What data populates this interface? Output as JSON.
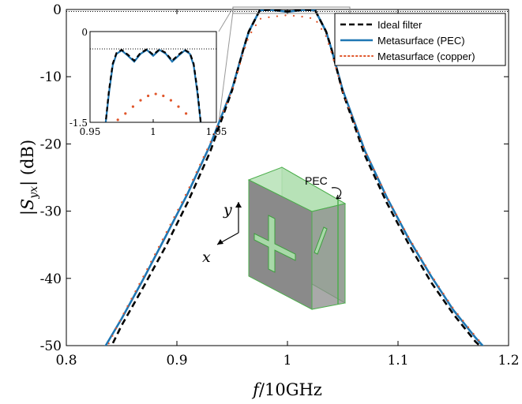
{
  "chart_data": {
    "type": "line",
    "xlabel": "f/10GHz",
    "ylabel": "|Syx| (dB)",
    "xlim": [
      0.8,
      1.2
    ],
    "ylim": [
      -50,
      0
    ],
    "xticks": [
      "0.8",
      "0.9",
      "1",
      "1.1",
      "1.2"
    ],
    "yticks": [
      "0",
      "-10",
      "-20",
      "-30",
      "-40",
      "-50"
    ],
    "grid": false,
    "legend_position": "top-right",
    "series": [
      {
        "name": "Ideal filter",
        "color": "#000000",
        "style": "dashed",
        "x": [
          0.838,
          0.85,
          0.87,
          0.89,
          0.91,
          0.93,
          0.95,
          0.96,
          0.965,
          0.975,
          0.985,
          1.0,
          1.015,
          1.025,
          1.035,
          1.04,
          1.05,
          1.07,
          1.09,
          1.11,
          1.13,
          1.15,
          1.17,
          1.19
        ],
        "y": [
          -51.0,
          -47.0,
          -41.2,
          -35.2,
          -28.6,
          -21.2,
          -12.0,
          -6.0,
          -3.3,
          -0.12,
          -0.02,
          -0.3,
          -0.02,
          -0.12,
          -3.3,
          -6.0,
          -12.3,
          -21.7,
          -28.8,
          -35.0,
          -40.6,
          -45.3,
          -49.4,
          -52.5
        ]
      },
      {
        "name": "Metasurface (PEC)",
        "color": "#1f77b4",
        "style": "solid",
        "x": [
          0.832,
          0.85,
          0.87,
          0.89,
          0.91,
          0.93,
          0.95,
          0.96,
          0.965,
          0.975,
          0.985,
          1.0,
          1.015,
          1.025,
          1.035,
          1.04,
          1.05,
          1.07,
          1.09,
          1.11,
          1.13,
          1.15,
          1.17,
          1.182
        ],
        "y": [
          -51.0,
          -46.0,
          -40.0,
          -33.7,
          -27.3,
          -20.2,
          -11.8,
          -6.0,
          -3.3,
          -0.1,
          -0.05,
          -0.35,
          -0.05,
          -0.1,
          -3.3,
          -6.0,
          -12.0,
          -21.0,
          -28.0,
          -34.2,
          -39.7,
          -44.7,
          -48.8,
          -51.0
        ]
      },
      {
        "name": "Metasurface (copper)",
        "color": "#e0562b",
        "style": "dotted",
        "x": [
          0.835,
          0.85,
          0.87,
          0.89,
          0.91,
          0.93,
          0.95,
          0.96,
          0.965,
          0.975,
          0.985,
          1.0,
          1.015,
          1.025,
          1.035,
          1.04,
          1.05,
          1.07,
          1.09,
          1.11,
          1.13,
          1.15,
          1.17,
          1.18
        ],
        "y": [
          -50.8,
          -45.8,
          -39.6,
          -33.3,
          -26.9,
          -19.9,
          -12.0,
          -6.5,
          -4.0,
          -1.4,
          -1.1,
          -0.85,
          -1.1,
          -1.4,
          -4.0,
          -6.5,
          -12.2,
          -21.0,
          -27.9,
          -34.0,
          -39.5,
          -44.5,
          -48.6,
          -50.6
        ]
      }
    ],
    "inset": {
      "xlim": [
        0.95,
        1.05
      ],
      "ylim": [
        -1.5,
        0
      ],
      "xticks": [
        "0.95",
        "1",
        "1.05"
      ],
      "yticks": [
        "0",
        "-1.5"
      ],
      "series": [
        {
          "name": "Ideal filter",
          "x": [
            0.962,
            0.965,
            0.968,
            0.971,
            0.975,
            0.98,
            0.985,
            0.99,
            0.995,
            1.0,
            1.005,
            1.01,
            1.015,
            1.02,
            1.025,
            1.029,
            1.032,
            1.035,
            1.038
          ],
          "y": [
            -1.6,
            -0.85,
            -0.3,
            -0.08,
            -0.02,
            -0.12,
            -0.24,
            -0.08,
            -0.01,
            -0.12,
            -0.01,
            -0.08,
            -0.24,
            -0.12,
            -0.02,
            -0.08,
            -0.3,
            -0.85,
            -1.6
          ]
        },
        {
          "name": "Metasurface (PEC)",
          "x": [
            0.962,
            0.965,
            0.968,
            0.971,
            0.975,
            0.98,
            0.985,
            0.99,
            0.995,
            1.0,
            1.005,
            1.01,
            1.015,
            1.02,
            1.025,
            1.029,
            1.032,
            1.035,
            1.038
          ],
          "y": [
            -1.6,
            -0.9,
            -0.33,
            -0.1,
            -0.03,
            -0.14,
            -0.26,
            -0.1,
            -0.02,
            -0.14,
            -0.02,
            -0.1,
            -0.26,
            -0.14,
            -0.03,
            -0.1,
            -0.33,
            -0.9,
            -1.6
          ]
        },
        {
          "name": "Metasurface (copper)",
          "x": [
            0.972,
            0.978,
            0.984,
            0.99,
            0.996,
            1.002,
            1.008,
            1.014,
            1.02,
            1.026
          ],
          "y": [
            -1.45,
            -1.32,
            -1.18,
            -1.05,
            -0.96,
            -0.92,
            -0.96,
            -1.05,
            -1.18,
            -1.32
          ]
        }
      ]
    },
    "annotations": {
      "pec_label": "PEC",
      "axis_x": "x",
      "axis_y": "y"
    }
  }
}
